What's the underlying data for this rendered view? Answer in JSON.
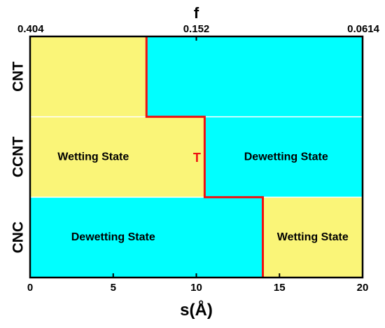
{
  "chart_data": {
    "type": "heatmap",
    "xlabel": "s(Å)",
    "x2label": "f",
    "xlim": [
      0,
      20
    ],
    "xticks": [
      0,
      5,
      10,
      15,
      20
    ],
    "top_ticks": [
      {
        "x": 0,
        "label": "0.404"
      },
      {
        "x": 10,
        "label": "0.152"
      },
      {
        "x": 20,
        "label": "0.0614"
      }
    ],
    "rows": [
      "CNT",
      "CCNT",
      "CNC"
    ],
    "regions": [
      {
        "row": "CNT",
        "x0": 0,
        "x1": 7,
        "state": "wetting"
      },
      {
        "row": "CNT",
        "x0": 7,
        "x1": 20,
        "state": "dewetting"
      },
      {
        "row": "CCNT",
        "x0": 0,
        "x1": 10.5,
        "state": "wetting"
      },
      {
        "row": "CCNT",
        "x0": 10.5,
        "x1": 20,
        "state": "dewetting"
      },
      {
        "row": "CNC",
        "x0": 0,
        "x1": 14,
        "state": "dewetting"
      },
      {
        "row": "CNC",
        "x0": 14,
        "x1": 20,
        "state": "wetting"
      }
    ],
    "transition": {
      "label": "T",
      "boundaries": [
        7,
        10.5,
        14
      ]
    },
    "region_labels": [
      {
        "text": "Wetting State",
        "row": "CCNT",
        "x": 3.8
      },
      {
        "text": "Dewetting State",
        "row": "CCNT",
        "x": 15.4
      },
      {
        "text": "Dewetting State",
        "row": "CNC",
        "x": 5.0
      },
      {
        "text": "Wetting State",
        "row": "CNC",
        "x": 17.0
      }
    ],
    "colors": {
      "wetting": "#faf578",
      "dewetting": "#00ffff",
      "transition": "#ee1111"
    }
  }
}
